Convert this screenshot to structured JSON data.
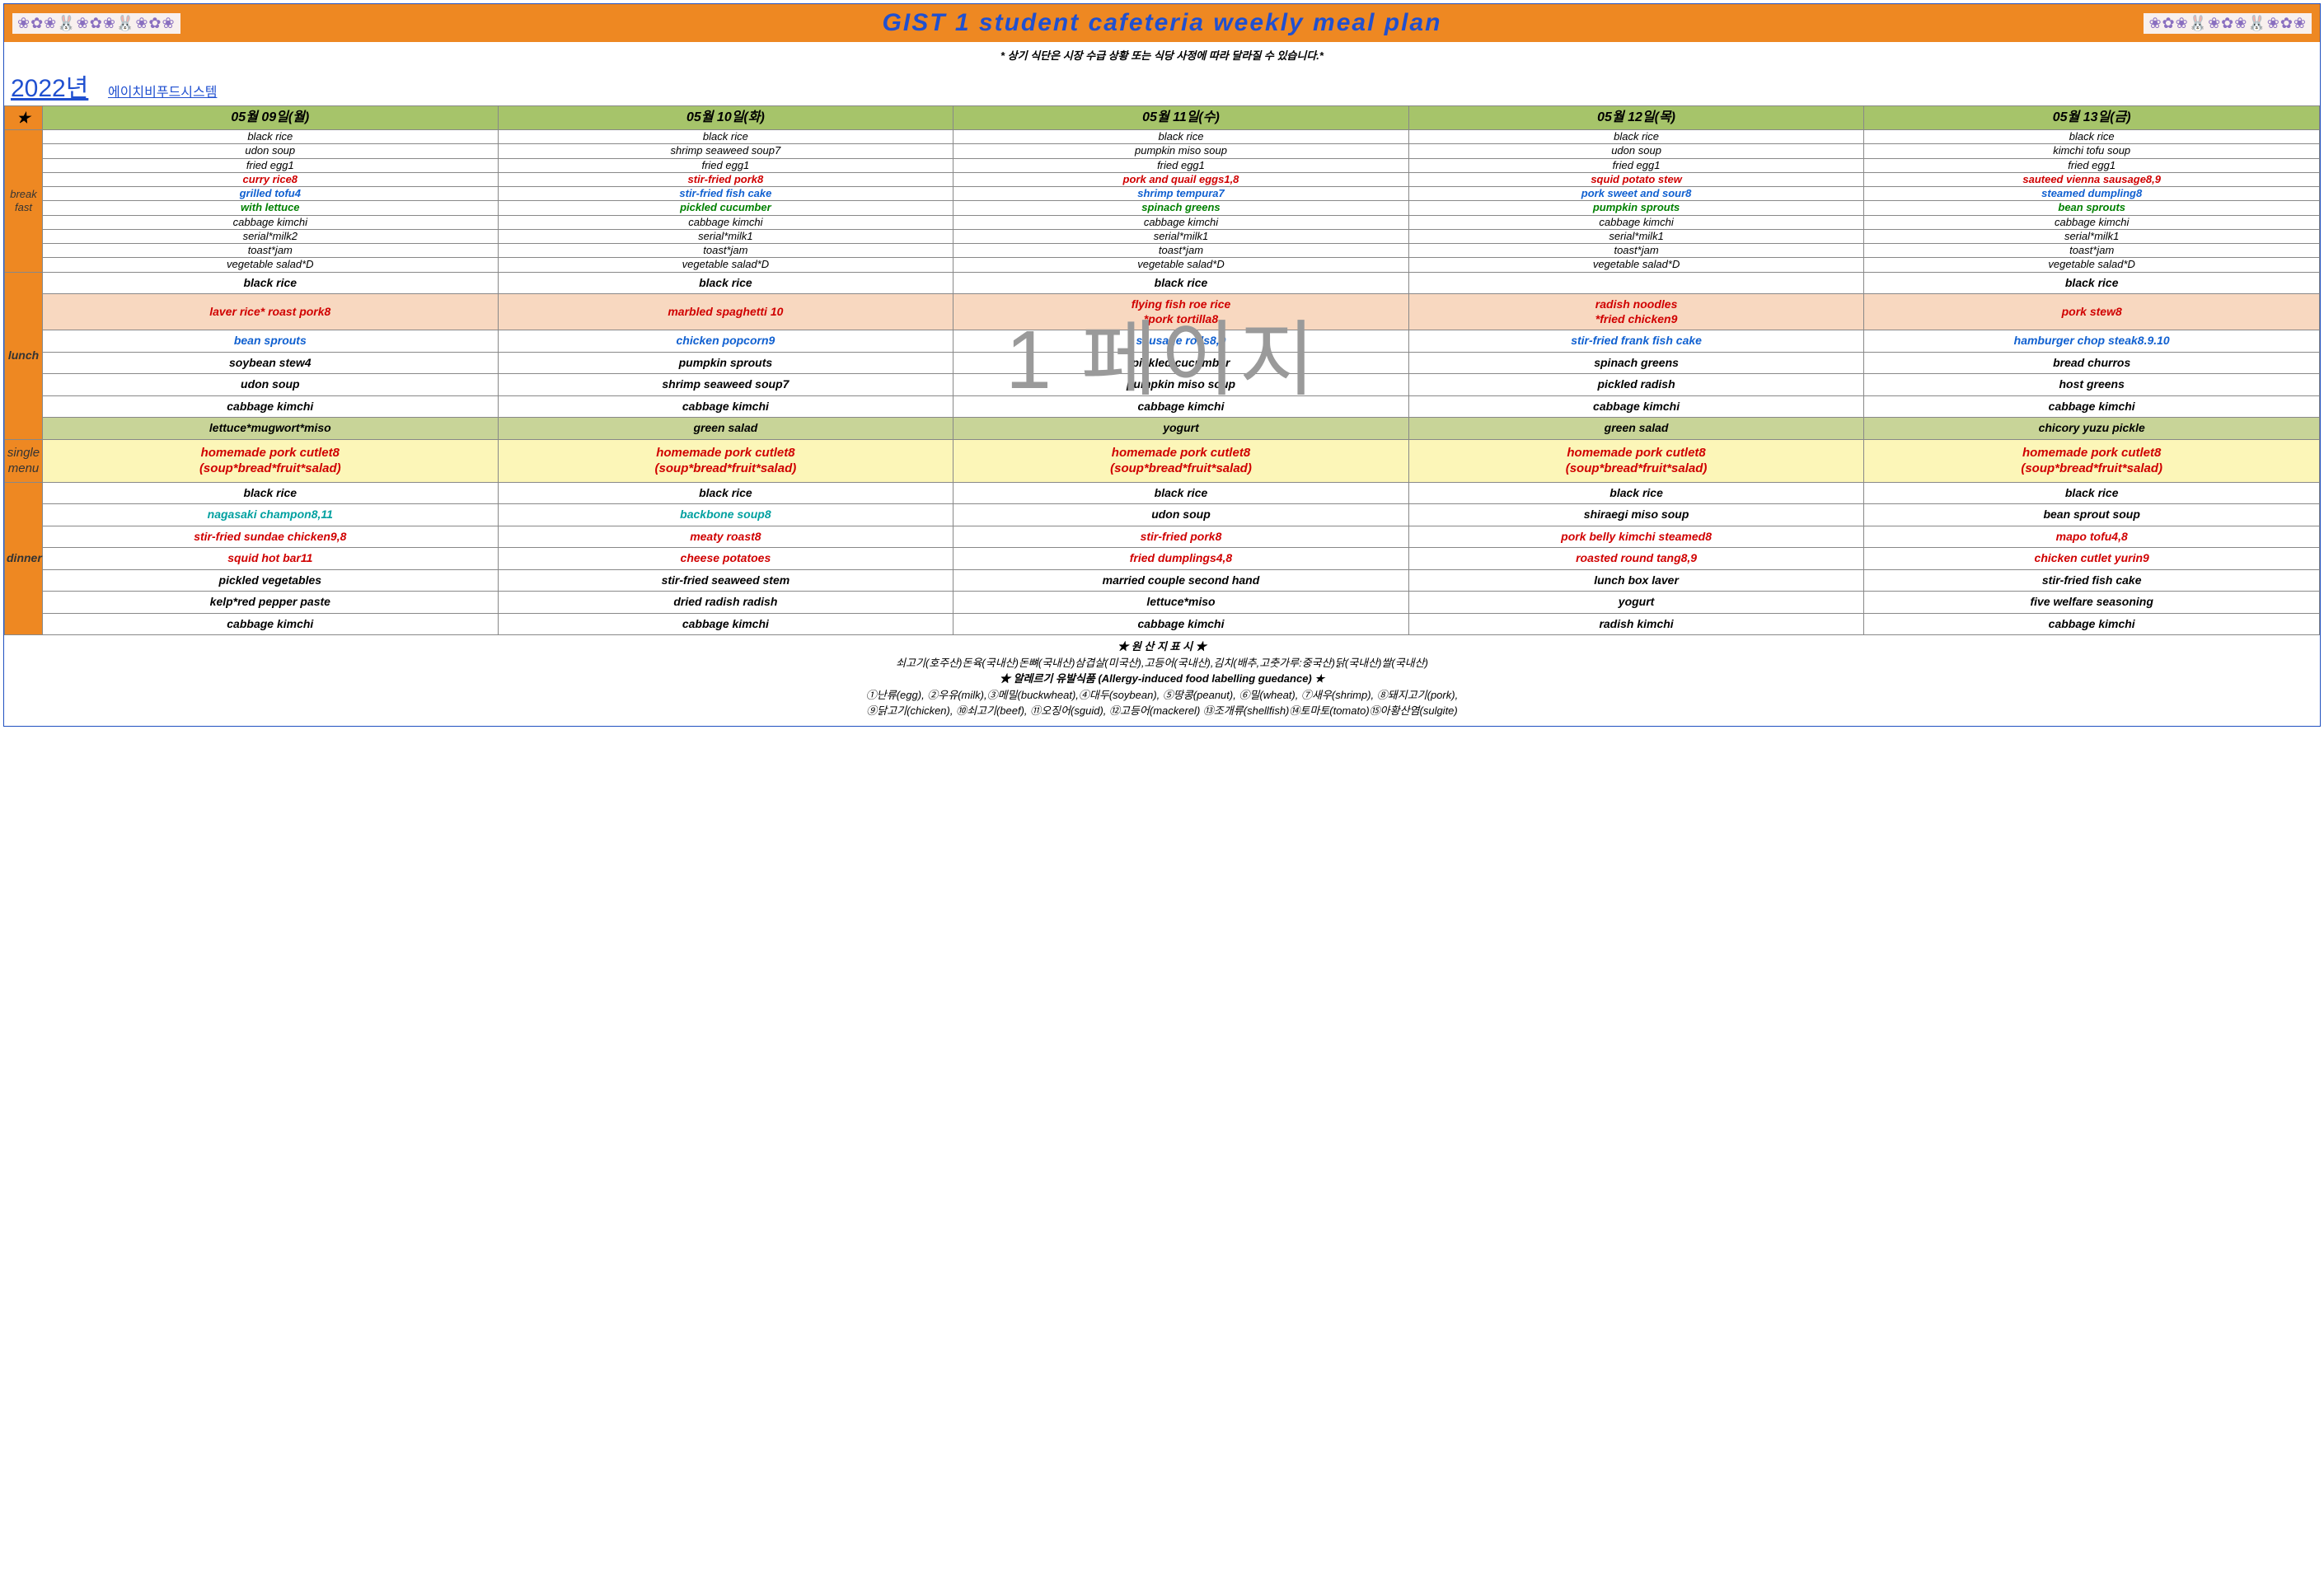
{
  "header": {
    "title": "GIST 1 student cafeteria weekly meal plan",
    "deco": "❀✿❀🐰❀✿❀🐰❀✿❀"
  },
  "notice": "* 상기 식단은 시장 수급 상황 또는 식당 사정에 따라 달라질 수 있습니다.*",
  "year": "2022년",
  "company": "에이치비푸드시스템",
  "watermark": "1 페이지",
  "days": [
    "05월  09일(월)",
    "05월  10일(화)",
    "05월  11일(수)",
    "05월  12일(목)",
    "05월  13일(금)"
  ],
  "labels": {
    "breakfast": "break\nfast",
    "lunch": "lunch",
    "single": "single\nmenu",
    "dinner": "dinner",
    "star": "★"
  },
  "breakfast": [
    [
      {
        "t": "black rice",
        "c": "black"
      },
      {
        "t": "black rice",
        "c": "black"
      },
      {
        "t": "black rice",
        "c": "black"
      },
      {
        "t": "black rice",
        "c": "black"
      },
      {
        "t": "black rice",
        "c": "black"
      }
    ],
    [
      {
        "t": "udon soup",
        "c": "black"
      },
      {
        "t": "shrimp seaweed soup7",
        "c": "black"
      },
      {
        "t": "pumpkin miso soup",
        "c": "black"
      },
      {
        "t": "udon soup",
        "c": "black"
      },
      {
        "t": "kimchi tofu soup",
        "c": "black"
      }
    ],
    [
      {
        "t": "fried egg1",
        "c": "black"
      },
      {
        "t": "fried egg1",
        "c": "black"
      },
      {
        "t": "fried egg1",
        "c": "black"
      },
      {
        "t": "fried egg1",
        "c": "black"
      },
      {
        "t": "fried egg1",
        "c": "black"
      }
    ],
    [
      {
        "t": "curry rice8",
        "c": "red"
      },
      {
        "t": "stir-fried pork8",
        "c": "red"
      },
      {
        "t": "pork and quail eggs1,8",
        "c": "red"
      },
      {
        "t": "squid potato stew",
        "c": "red"
      },
      {
        "t": "sauteed vienna sausage8,9",
        "c": "red"
      }
    ],
    [
      {
        "t": "grilled tofu4",
        "c": "blue"
      },
      {
        "t": "stir-fried fish cake",
        "c": "blue"
      },
      {
        "t": "shrimp tempura7",
        "c": "blue"
      },
      {
        "t": "pork sweet and sour8",
        "c": "blue"
      },
      {
        "t": "steamed dumpling8",
        "c": "blue"
      }
    ],
    [
      {
        "t": "with lettuce",
        "c": "green"
      },
      {
        "t": "pickled cucumber",
        "c": "green"
      },
      {
        "t": "spinach greens",
        "c": "green"
      },
      {
        "t": "pumpkin sprouts",
        "c": "green"
      },
      {
        "t": "bean sprouts",
        "c": "green"
      }
    ],
    [
      {
        "t": "cabbage kimchi",
        "c": "black"
      },
      {
        "t": "cabbage kimchi",
        "c": "black"
      },
      {
        "t": "cabbage kimchi",
        "c": "black"
      },
      {
        "t": "cabbage kimchi",
        "c": "black"
      },
      {
        "t": "cabbage kimchi",
        "c": "black"
      }
    ],
    [
      {
        "t": "serial*milk2",
        "c": "black"
      },
      {
        "t": "serial*milk1",
        "c": "black"
      },
      {
        "t": "serial*milk1",
        "c": "black"
      },
      {
        "t": "serial*milk1",
        "c": "black"
      },
      {
        "t": "serial*milk1",
        "c": "black"
      }
    ],
    [
      {
        "t": "toast*jam",
        "c": "black"
      },
      {
        "t": "toast*jam",
        "c": "black"
      },
      {
        "t": "toast*jam",
        "c": "black"
      },
      {
        "t": "toast*jam",
        "c": "black"
      },
      {
        "t": "toast*jam",
        "c": "black"
      }
    ],
    [
      {
        "t": "vegetable salad*D",
        "c": "black"
      },
      {
        "t": "vegetable salad*D",
        "c": "black"
      },
      {
        "t": "vegetable salad*D",
        "c": "black"
      },
      {
        "t": "vegetable salad*D",
        "c": "black"
      },
      {
        "t": "vegetable salad*D",
        "c": "black"
      }
    ]
  ],
  "lunch": [
    [
      {
        "t": "black rice",
        "c": "black",
        "bg": ""
      },
      {
        "t": "black rice",
        "c": "black",
        "bg": ""
      },
      {
        "t": "black rice",
        "c": "black",
        "bg": ""
      },
      {
        "t": "",
        "c": "black",
        "bg": ""
      },
      {
        "t": "black rice",
        "c": "black",
        "bg": ""
      }
    ],
    [
      {
        "t": "laver rice* roast pork8",
        "c": "red",
        "bg": "peach"
      },
      {
        "t": "marbled spaghetti 10",
        "c": "red",
        "bg": "peach"
      },
      {
        "t": "flying fish roe rice\n*pork tortilla8",
        "c": "red",
        "bg": "peach"
      },
      {
        "t": "radish noodles\n*fried chicken9",
        "c": "red",
        "bg": "peach"
      },
      {
        "t": "pork stew8",
        "c": "red",
        "bg": "peach"
      }
    ],
    [
      {
        "t": "bean sprouts",
        "c": "blue",
        "bg": ""
      },
      {
        "t": "chicken popcorn9",
        "c": "blue",
        "bg": ""
      },
      {
        "t": "sausage rolls8,9",
        "c": "blue",
        "bg": ""
      },
      {
        "t": "stir-fried frank fish cake",
        "c": "blue",
        "bg": ""
      },
      {
        "t": "hamburger chop steak8.9.10",
        "c": "blue",
        "bg": ""
      }
    ],
    [
      {
        "t": "soybean stew4",
        "c": "black",
        "bg": ""
      },
      {
        "t": "pumpkin sprouts",
        "c": "black",
        "bg": ""
      },
      {
        "t": "pickled cucumber",
        "c": "black",
        "bg": ""
      },
      {
        "t": "spinach greens",
        "c": "black",
        "bg": ""
      },
      {
        "t": "bread churros",
        "c": "black",
        "bg": ""
      }
    ],
    [
      {
        "t": "udon soup",
        "c": "black",
        "bg": ""
      },
      {
        "t": "shrimp seaweed soup7",
        "c": "black",
        "bg": ""
      },
      {
        "t": "pumpkin miso soup",
        "c": "black",
        "bg": ""
      },
      {
        "t": "pickled radish",
        "c": "black",
        "bg": ""
      },
      {
        "t": "host greens",
        "c": "black",
        "bg": ""
      }
    ],
    [
      {
        "t": "cabbage kimchi",
        "c": "black",
        "bg": ""
      },
      {
        "t": "cabbage kimchi",
        "c": "black",
        "bg": ""
      },
      {
        "t": "cabbage kimchi",
        "c": "black",
        "bg": ""
      },
      {
        "t": "cabbage kimchi",
        "c": "black",
        "bg": ""
      },
      {
        "t": "cabbage kimchi",
        "c": "black",
        "bg": ""
      }
    ],
    [
      {
        "t": "lettuce*mugwort*miso",
        "c": "black",
        "bg": "olive"
      },
      {
        "t": "green salad",
        "c": "black",
        "bg": "olive"
      },
      {
        "t": "yogurt",
        "c": "black",
        "bg": "olive"
      },
      {
        "t": "green salad",
        "c": "black",
        "bg": "olive"
      },
      {
        "t": "chicory yuzu pickle",
        "c": "black",
        "bg": "olive"
      }
    ]
  ],
  "single": [
    {
      "t": "homemade pork cutlet8\n(soup*bread*fruit*salad)",
      "c": "red",
      "bg": "yellow"
    },
    {
      "t": "homemade pork cutlet8\n(soup*bread*fruit*salad)",
      "c": "red",
      "bg": "yellow"
    },
    {
      "t": "homemade pork cutlet8\n(soup*bread*fruit*salad)",
      "c": "red",
      "bg": "yellow"
    },
    {
      "t": "homemade pork cutlet8\n(soup*bread*fruit*salad)",
      "c": "red",
      "bg": "yellow"
    },
    {
      "t": "homemade pork cutlet8\n(soup*bread*fruit*salad)",
      "c": "red",
      "bg": "yellow"
    }
  ],
  "dinner": [
    [
      {
        "t": "black rice",
        "c": "black"
      },
      {
        "t": "black rice",
        "c": "black"
      },
      {
        "t": "black rice",
        "c": "black"
      },
      {
        "t": "black rice",
        "c": "black"
      },
      {
        "t": "black rice",
        "c": "black"
      }
    ],
    [
      {
        "t": "nagasaki champon8,11",
        "c": "aqua"
      },
      {
        "t": "backbone soup8",
        "c": "aqua"
      },
      {
        "t": "udon soup",
        "c": "black"
      },
      {
        "t": "shiraegi miso soup",
        "c": "black"
      },
      {
        "t": "bean sprout soup",
        "c": "black"
      }
    ],
    [
      {
        "t": "stir-fried sundae chicken9,8",
        "c": "red"
      },
      {
        "t": "meaty roast8",
        "c": "red"
      },
      {
        "t": "stir-fried pork8",
        "c": "red"
      },
      {
        "t": "pork belly kimchi steamed8",
        "c": "red"
      },
      {
        "t": "mapo tofu4,8",
        "c": "red"
      }
    ],
    [
      {
        "t": "squid hot bar11",
        "c": "red"
      },
      {
        "t": "cheese potatoes",
        "c": "red"
      },
      {
        "t": "fried dumplings4,8",
        "c": "red"
      },
      {
        "t": "roasted round tang8,9",
        "c": "red"
      },
      {
        "t": "chicken cutlet yurin9",
        "c": "red"
      }
    ],
    [
      {
        "t": "pickled vegetables",
        "c": "black"
      },
      {
        "t": "stir-fried seaweed stem",
        "c": "black"
      },
      {
        "t": "married couple second hand",
        "c": "black"
      },
      {
        "t": "lunch box laver",
        "c": "black"
      },
      {
        "t": "stir-fried fish cake",
        "c": "black"
      }
    ],
    [
      {
        "t": "kelp*red pepper paste",
        "c": "black"
      },
      {
        "t": "dried radish radish",
        "c": "black"
      },
      {
        "t": "lettuce*miso",
        "c": "black"
      },
      {
        "t": "yogurt",
        "c": "black"
      },
      {
        "t": "five welfare seasoning",
        "c": "black"
      }
    ],
    [
      {
        "t": "cabbage kimchi",
        "c": "black"
      },
      {
        "t": "cabbage kimchi",
        "c": "black"
      },
      {
        "t": "cabbage kimchi",
        "c": "black"
      },
      {
        "t": "radish kimchi",
        "c": "black"
      },
      {
        "t": "cabbage kimchi",
        "c": "black"
      }
    ]
  ],
  "footer": {
    "origin_title": "★ 원 산 지 표 시 ★",
    "origin_body": "쇠고기(호주산)돈육(국내산)돈뼈(국내산)삼겹살(미국산),고등어(국내산),김치(배추,고춧가루:중국산)닭(국내산)쌀(국내산)",
    "allergy_title": "★ 알레르기 유발식품 (Allergy-induced food labelling guedance) ★",
    "allergy_body1": "①난류(egg), ②우유(milk),③메밀(buckwheat),④대두(soybean), ⑤땅콩(peanut), ⑥밀(wheat), ⑦새우(shrimp), ⑧돼지고기(pork),",
    "allergy_body2": "⑨닭고기(chicken), ⑩쇠고기(beef), ⑪오징어(sguid), ⑫고등어(mackerel) ⑬조개류(shellfish)⑭토마토(tomato)⑮아황산염(sulgite)"
  },
  "colors": {
    "orange": "#ee8822",
    "olive": "#a6c46a",
    "peach": "#f8d8c0",
    "yellow": "#fcf6b8",
    "blue": "#2050d0",
    "red": "#d00000",
    "green": "#008000",
    "aqua": "#00a0a0"
  }
}
